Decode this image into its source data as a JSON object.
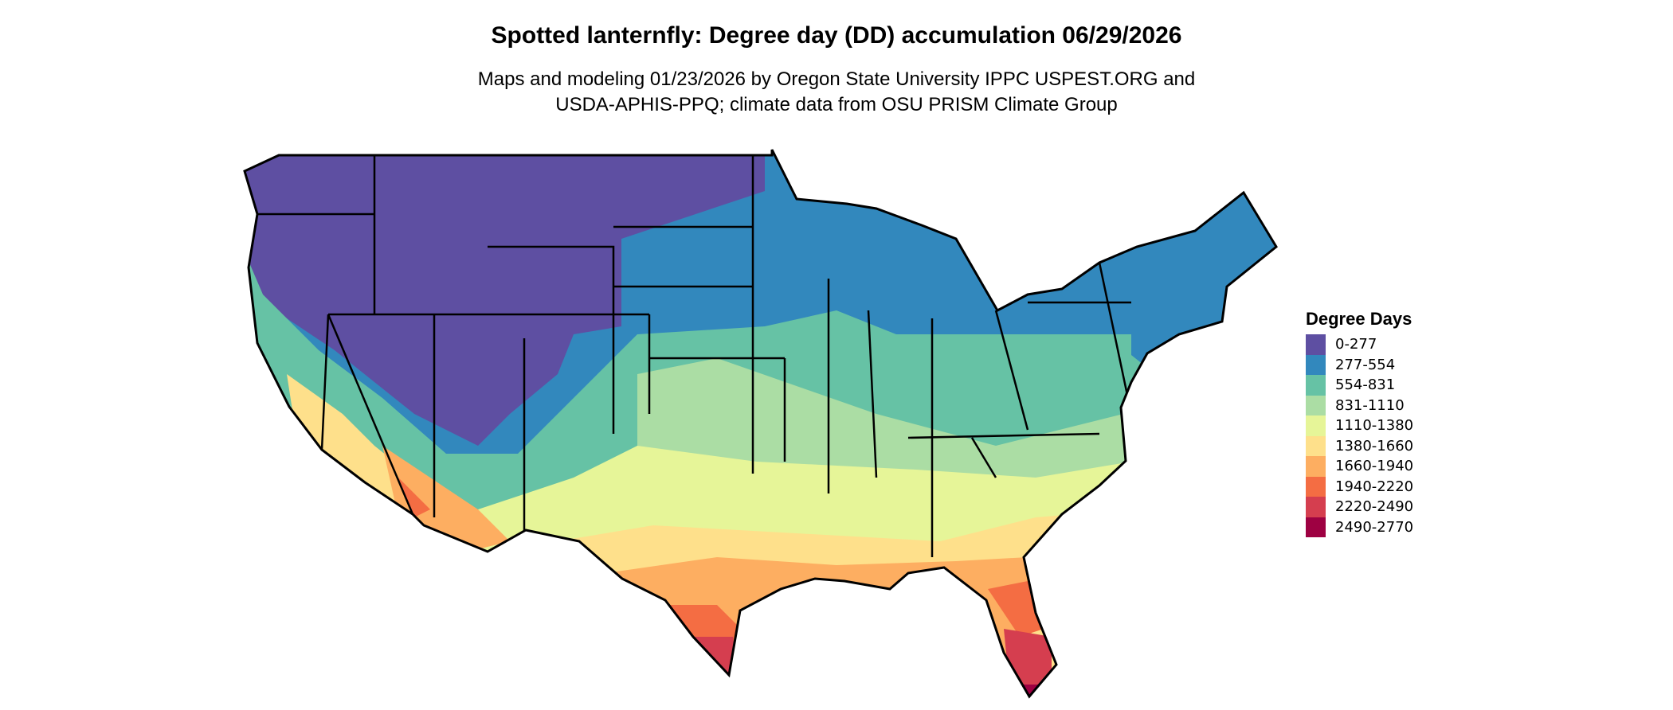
{
  "title": "Spotted lanternfly: Degree day (DD) accumulation 06/29/2026",
  "subtitle_lines": [
    "Maps and modeling 01/23/2026 by Oregon State University IPPC USPEST.ORG and",
    "USDA-APHIS-PPQ; climate data from OSU PRISM Climate Group"
  ],
  "chart_data": {
    "type": "heatmap",
    "region": "Contiguous United States",
    "legend_title": "Degree Days",
    "legend_placement": "right",
    "classes": [
      {
        "label": "0-277",
        "color": "#5E4FA2"
      },
      {
        "label": "277-554",
        "color": "#3288BD"
      },
      {
        "label": "554-831",
        "color": "#66C2A5"
      },
      {
        "label": "831-1110",
        "color": "#ABDDA4"
      },
      {
        "label": "1110-1380",
        "color": "#E6F598"
      },
      {
        "label": "1380-1660",
        "color": "#FEE08B"
      },
      {
        "label": "1660-1940",
        "color": "#FDAE61"
      },
      {
        "label": "1940-2220",
        "color": "#F46D43"
      },
      {
        "label": "2220-2490",
        "color": "#D53E4F"
      },
      {
        "label": "2490-2770",
        "color": "#9E0142"
      }
    ]
  }
}
